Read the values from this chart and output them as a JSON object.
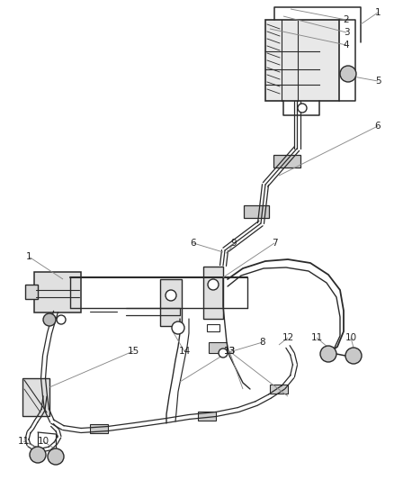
{
  "background_color": "#ffffff",
  "line_color": "#2a2a2a",
  "leader_color": "#888888",
  "fig_width": 4.38,
  "fig_height": 5.33,
  "dpi": 100,
  "lw_main": 1.4,
  "lw_thin": 0.85,
  "lw_med": 1.1
}
